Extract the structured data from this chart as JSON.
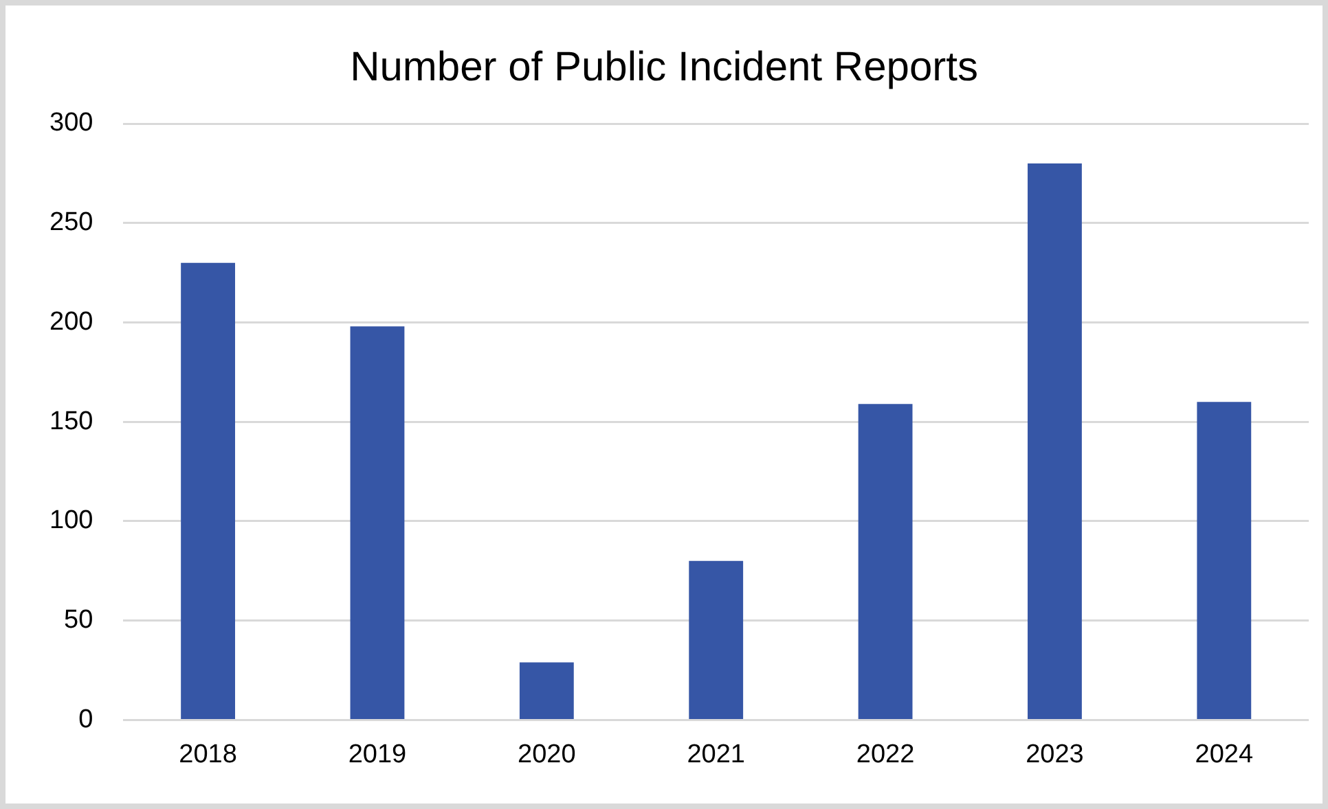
{
  "chart_data": {
    "type": "bar",
    "title": "Number of Public Incident Reports",
    "categories": [
      "2018",
      "2019",
      "2020",
      "2021",
      "2022",
      "2023",
      "2024"
    ],
    "values": [
      230,
      198,
      29,
      80,
      159,
      280,
      160
    ],
    "color": "#3656a6",
    "ylim": [
      0,
      300
    ],
    "yticks": [
      0,
      50,
      100,
      150,
      200,
      250,
      300
    ],
    "grid": "y",
    "legend": false
  }
}
